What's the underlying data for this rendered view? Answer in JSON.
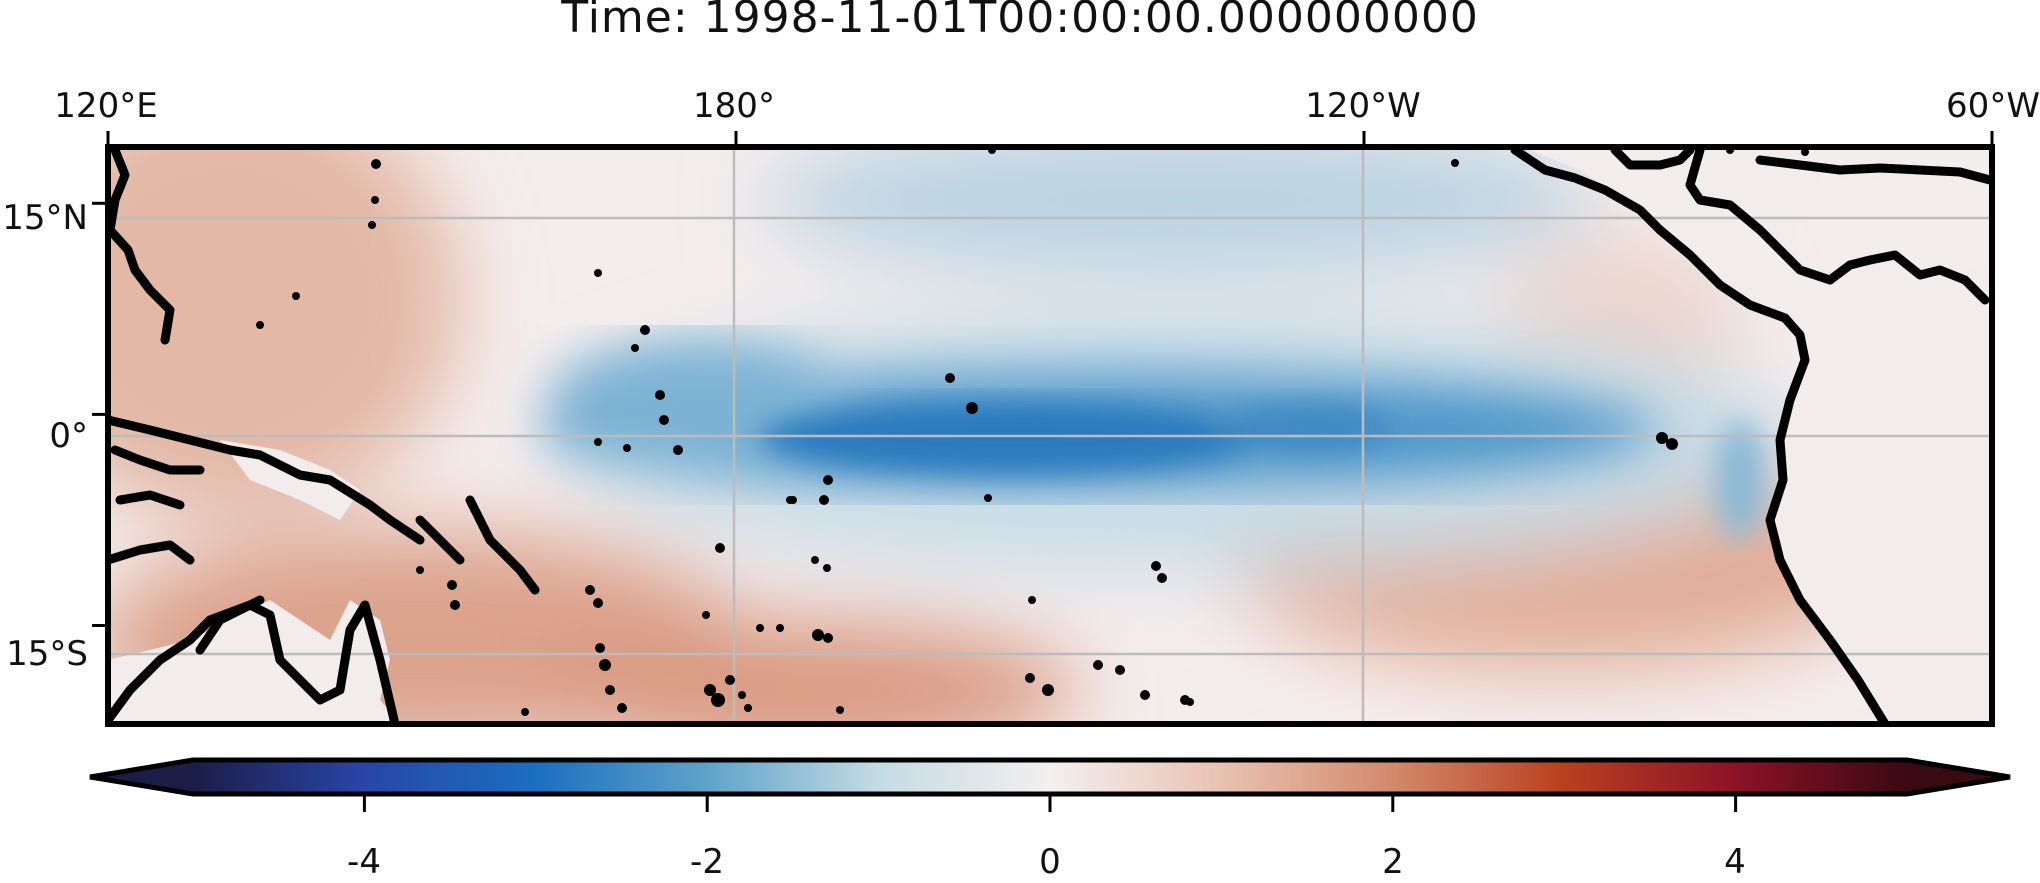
{
  "title": "Time: 1998-11-01T00:00:00.000000000",
  "map": {
    "extent": {
      "lon_min": 120,
      "lon_max": 300,
      "lat_min": -22,
      "lat_max": 19
    },
    "lon_ticks": [
      {
        "value": 120,
        "label": "120°E"
      },
      {
        "value": 180,
        "label": "180°"
      },
      {
        "value": 240,
        "label": "120°W"
      },
      {
        "value": 300,
        "label": "60°W"
      }
    ],
    "lat_ticks": [
      {
        "value": 15,
        "label": "15°N"
      },
      {
        "value": 0,
        "label": "0°"
      },
      {
        "value": -15,
        "label": "15°S"
      }
    ],
    "gridlines": true,
    "features": [
      "coastlines",
      "sea-surface anomaly field"
    ]
  },
  "colorbar": {
    "min": -5,
    "max": 5,
    "extend": "both",
    "ticks": [
      {
        "value": -4,
        "label": "-4"
      },
      {
        "value": -2,
        "label": "-2"
      },
      {
        "value": 0,
        "label": "0"
      },
      {
        "value": 2,
        "label": "2"
      },
      {
        "value": 4,
        "label": "4"
      }
    ],
    "colormap_stops": [
      "#1b1d47",
      "#2a45a8",
      "#1a6fc0",
      "#5fa3c9",
      "#c4dbe3",
      "#f3efee",
      "#e8c2b2",
      "#d2896b",
      "#b8401f",
      "#8c1228",
      "#3a0a12"
    ]
  },
  "colors": {
    "frame": "#000000",
    "gridline": "#bbbbbb",
    "land": "#f2ecec",
    "cold": "#1f75bd",
    "warm": "#d08a72"
  }
}
